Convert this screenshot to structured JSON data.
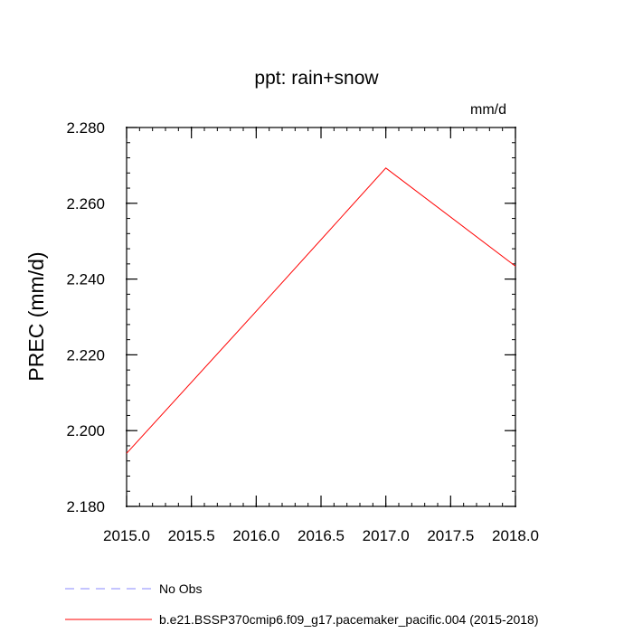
{
  "chart_data": {
    "type": "line",
    "title": "ppt: rain+snow",
    "units_label": "mm/d",
    "ylabel": "PREC  (mm/d)",
    "xlabel": "",
    "xlim": [
      2015.0,
      2018.0
    ],
    "ylim": [
      2.18,
      2.28
    ],
    "x_ticks": [
      2015.0,
      2015.5,
      2016.0,
      2016.5,
      2017.0,
      2017.5,
      2018.0
    ],
    "x_tick_labels": [
      "2015.0",
      "2015.5",
      "2016.0",
      "2016.5",
      "2017.0",
      "2017.5",
      "2018.0"
    ],
    "y_ticks": [
      2.18,
      2.2,
      2.22,
      2.24,
      2.26,
      2.28
    ],
    "y_tick_labels": [
      "2.180",
      "2.200",
      "2.220",
      "2.240",
      "2.260",
      "2.280"
    ],
    "grid": false,
    "legend_position": "bottom",
    "series": [
      {
        "name": "b.e21.BSSP370cmip6.f09_g17.pacemaker_pacific.004 (2015-2018)",
        "color": "#ff0000",
        "dash": "solid",
        "x": [
          2015.0,
          2016.0,
          2017.0,
          2018.0
        ],
        "values": [
          2.194,
          2.2315,
          2.2693,
          2.2434
        ]
      }
    ],
    "legend": [
      {
        "label": "No Obs",
        "color": "#8888ff",
        "dash": "dashed"
      },
      {
        "label": "b.e21.BSSP370cmip6.f09_g17.pacemaker_pacific.004 (2015-2018)",
        "color": "#ff0000",
        "dash": "solid"
      }
    ]
  }
}
